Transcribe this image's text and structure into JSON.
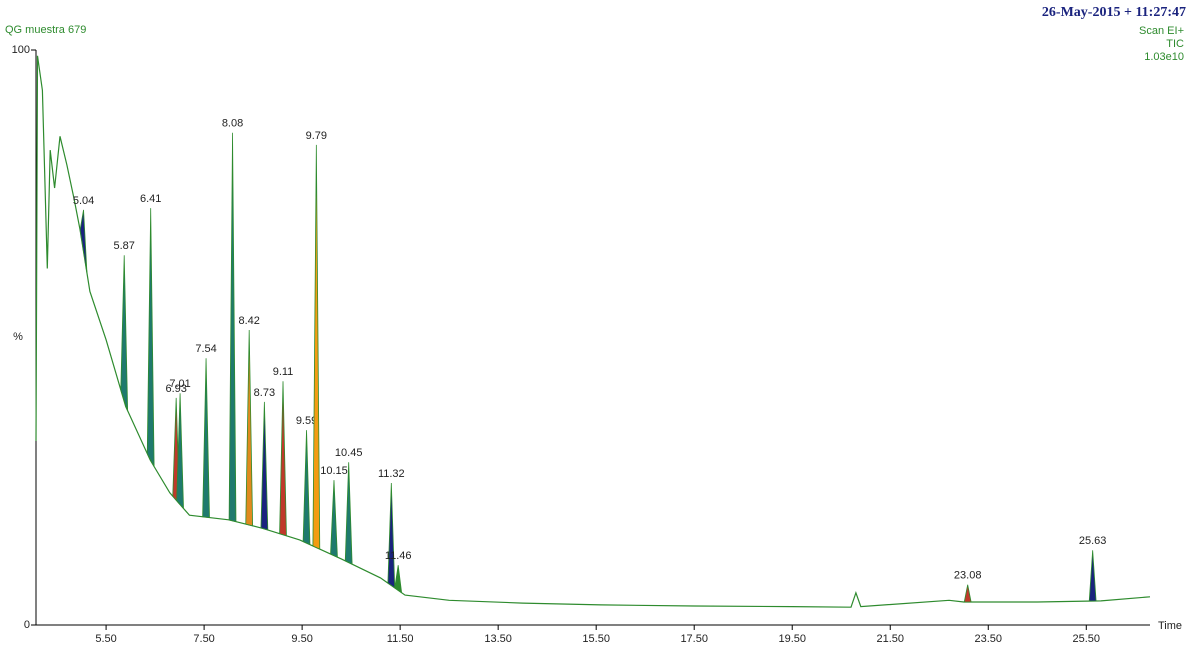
{
  "chart_data": {
    "type": "chromatogram",
    "title": "QG muestra 679",
    "timestamp": "26-May-2015 + 11:27:47",
    "scan": "Scan EI+",
    "trace_type": "TIC",
    "intensity": "1.03e10",
    "xlabel": "Time",
    "ylabel": "%",
    "color": "#2e8b2e",
    "xlim": [
      4.07,
      26.8
    ],
    "ylim": [
      0,
      100
    ],
    "yticks": [
      0,
      100
    ],
    "xticks": [
      {
        "value": 5.5,
        "label": "5.50"
      },
      {
        "value": 7.5,
        "label": "7.50"
      },
      {
        "value": 9.5,
        "label": "9.50"
      },
      {
        "value": 11.5,
        "label": "11.50"
      },
      {
        "value": 13.5,
        "label": "13.50"
      },
      {
        "value": 15.5,
        "label": "15.50"
      },
      {
        "value": 17.5,
        "label": "17.50"
      },
      {
        "value": 19.5,
        "label": "19.50"
      },
      {
        "value": 21.5,
        "label": "21.50"
      },
      {
        "value": 23.5,
        "label": "23.50"
      },
      {
        "value": 25.5,
        "label": "25.50"
      }
    ],
    "x": [
      4.07,
      4.1,
      4.2,
      4.3,
      4.36,
      4.45,
      4.56,
      4.7,
      4.85,
      4.97,
      5.17,
      5.5,
      5.9,
      6.4,
      6.8,
      7.2,
      8.0,
      8.7,
      9.45,
      10.3,
      11.1,
      11.6,
      12.5,
      14.0,
      15.6,
      17.5,
      19.5,
      20.7,
      20.8,
      20.9,
      22.7,
      23.0,
      24.5,
      25.8,
      26.8
    ],
    "y": [
      32,
      99,
      93,
      62,
      82.6,
      76,
      85,
      80,
      74,
      68.7,
      58,
      49.6,
      38,
      28.7,
      23,
      19.1,
      18.3,
      16.8,
      14.8,
      11.5,
      8.2,
      5.2,
      4.3,
      3.8,
      3.5,
      3.3,
      3.2,
      3.1,
      5.6,
      3.2,
      4.3,
      4.0,
      4.0,
      4.2,
      4.9
    ],
    "peaks": {
      "x": [
        5.04,
        5.87,
        6.41,
        6.93,
        7.01,
        7.54,
        8.08,
        8.42,
        8.73,
        9.11,
        9.59,
        9.79,
        10.15,
        10.45,
        11.32,
        11.46,
        23.08,
        25.63
      ],
      "y": [
        72.2,
        64.3,
        72.5,
        39.5,
        40.3,
        46.4,
        85.6,
        51.3,
        38.8,
        42.4,
        33.9,
        83.5,
        25.2,
        28.3,
        24.7,
        10.4,
        7.0,
        13.0
      ],
      "colors": [
        "#1a237e",
        "#1f7a6e",
        "#1f7a6e",
        "#c0392b",
        "#1f7a6e",
        "#1f7a6e",
        "#1f7a6e",
        "#e08a1e",
        "#1a237e",
        "#c0392b",
        "#1f7a6e",
        "#f39c12",
        "#1f7a6e",
        "#1f7a6e",
        "#1a237e",
        "#2e8b2e",
        "#c0392b",
        "#1a237e"
      ]
    }
  }
}
